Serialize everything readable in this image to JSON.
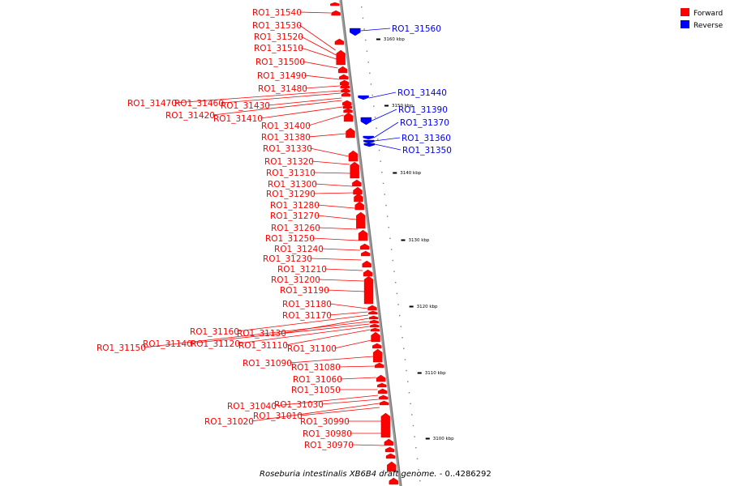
{
  "legend": {
    "forward_label": "Forward",
    "reverse_label": "Reverse",
    "forward_color": "#ff0000",
    "reverse_color": "#0000ff"
  },
  "caption": {
    "genome": "Roseburia intestinalis XB6B4 draft genome.",
    "range": " - 0..4286292"
  },
  "axis": {
    "ticks": [
      "3160 kbp",
      "3150 kbp",
      "3140 kbp",
      "3130 kbp",
      "3120 kbp",
      "3110 kbp",
      "3100 kbp"
    ]
  },
  "forward_genes": [
    "RO1_31540",
    "RO1_31530",
    "RO1_31520",
    "RO1_31510",
    "RO1_31500",
    "RO1_31490",
    "RO1_31480",
    "RO1_31470",
    "RO1_31460",
    "RO1_31430",
    "RO1_31420",
    "RO1_31410",
    "RO1_31400",
    "RO1_31380",
    "RO1_31330",
    "RO1_31320",
    "RO1_31310",
    "RO1_31300",
    "RO1_31290",
    "RO1_31280",
    "RO1_31270",
    "RO1_31260",
    "RO1_31250",
    "RO1_31240",
    "RO1_31230",
    "RO1_31210",
    "RO1_31200",
    "RO1_31190",
    "RO1_31180",
    "RO1_31170",
    "RO1_31160",
    "RO1_31130",
    "RO1_31150",
    "RO1_31140",
    "RO1_31120",
    "RO1_31110",
    "RO1_31100",
    "RO1_31090",
    "RO1_31080",
    "RO1_31060",
    "RO1_31050",
    "RO1_31040",
    "RO1_31030",
    "RO1_31020",
    "RO1_31010",
    "RO1_30990",
    "RO1_30980",
    "RO1_30970"
  ],
  "reverse_genes": [
    "RO1_31560",
    "RO1_31440",
    "RO1_31390",
    "RO1_31370",
    "RO1_31360",
    "RO1_31350"
  ]
}
